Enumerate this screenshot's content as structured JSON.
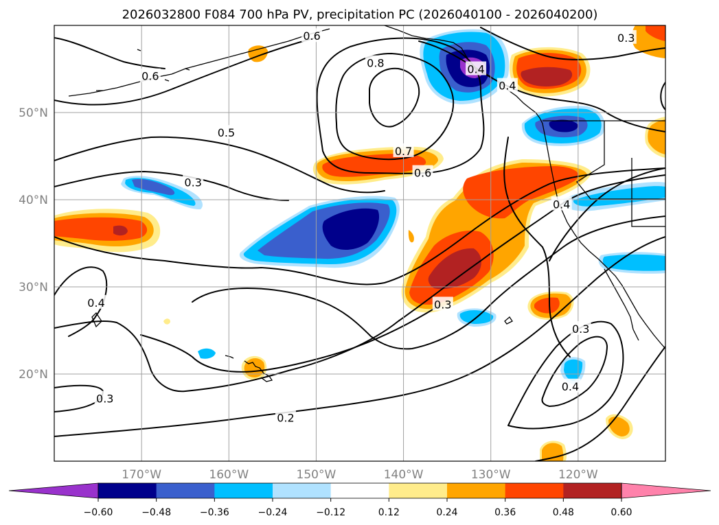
{
  "chart_data": {
    "type": "map-contour",
    "title": "2026032800 F084 700 hPa PV, precipitation PC (2026040100 - 2026040200)",
    "lon_range": [
      -180,
      -110
    ],
    "lat_range": [
      10,
      60
    ],
    "lon_ticks": [
      {
        "value": -170,
        "label": "170°W"
      },
      {
        "value": -160,
        "label": "160°W"
      },
      {
        "value": -150,
        "label": "150°W"
      },
      {
        "value": -140,
        "label": "140°W"
      },
      {
        "value": -130,
        "label": "130°W"
      },
      {
        "value": -120,
        "label": "120°W"
      }
    ],
    "lat_ticks": [
      {
        "value": 20,
        "label": "20°N"
      },
      {
        "value": 30,
        "label": "30°N"
      },
      {
        "value": 40,
        "label": "40°N"
      },
      {
        "value": 50,
        "label": "50°N"
      }
    ],
    "contour_labels": [
      {
        "text": "0.6",
        "lon": -169.0,
        "lat": 54.2
      },
      {
        "text": "0.6",
        "lon": -150.5,
        "lat": 58.8
      },
      {
        "text": "0.8",
        "lon": -143.2,
        "lat": 55.7
      },
      {
        "text": "0.5",
        "lon": -160.3,
        "lat": 47.7
      },
      {
        "text": "0.7",
        "lon": -140.0,
        "lat": 45.6
      },
      {
        "text": "0.6",
        "lon": -137.8,
        "lat": 43.1
      },
      {
        "text": "0.3",
        "lon": -164.1,
        "lat": 42.0
      },
      {
        "text": "0.4",
        "lon": -175.2,
        "lat": 28.2
      },
      {
        "text": "0.3",
        "lon": -174.2,
        "lat": 17.2
      },
      {
        "text": "0.2",
        "lon": -153.5,
        "lat": 15.0
      },
      {
        "text": "0.3",
        "lon": -135.5,
        "lat": 28.0
      },
      {
        "text": "0.4",
        "lon": -121.9,
        "lat": 39.5
      },
      {
        "text": "0.3",
        "lon": -119.7,
        "lat": 25.2
      },
      {
        "text": "0.4",
        "lon": -120.9,
        "lat": 18.6
      },
      {
        "text": "0.4",
        "lon": -131.7,
        "lat": 55.0
      },
      {
        "text": "0.4",
        "lon": -128.1,
        "lat": 53.1
      },
      {
        "text": "0.3",
        "lon": -114.5,
        "lat": 58.6
      }
    ],
    "colorbar": {
      "levels": [
        -0.6,
        -0.48,
        -0.36,
        -0.24,
        -0.12,
        0.12,
        0.24,
        0.36,
        0.48,
        0.6
      ],
      "labels": [
        "−0.60",
        "−0.48",
        "−0.36",
        "−0.24",
        "−0.12",
        "0.12",
        "0.24",
        "0.36",
        "0.48",
        "0.60"
      ],
      "colors": [
        "#9932CC",
        "#00008B",
        "#3A5FCD",
        "#00BFFF",
        "#B0E2FF",
        "#FFFFFF",
        "#FFEC8B",
        "#FFA500",
        "#FF4500",
        "#B22222",
        "#FF82AB"
      ],
      "extend": "both"
    }
  }
}
